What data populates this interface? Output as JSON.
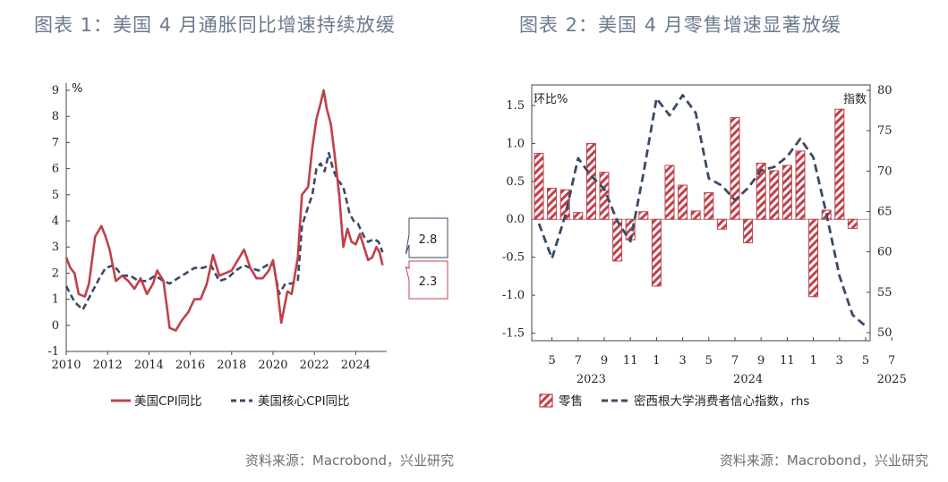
{
  "titles": {
    "chart1": "图表 1：美国 4 月通胀同比增速持续放缓",
    "chart2": "图表 2：美国 4 月零售增速显著放缓"
  },
  "sources": {
    "chart1": "资料来源：Macrobond，兴业研究",
    "chart2": "资料来源：Macrobond，兴业研究"
  },
  "colors": {
    "red": "#c0404a",
    "navy": "#3a4a66",
    "axis": "#444444"
  },
  "chart_data": [
    {
      "type": "line",
      "title": "",
      "ylabel": "%",
      "ylim": [
        -1,
        9
      ],
      "yticks": [
        "9",
        "8",
        "7",
        "6",
        "5",
        "4",
        "3",
        "2",
        "1",
        "0",
        "-1"
      ],
      "xlim": [
        2010,
        2025.5
      ],
      "xticks": [
        "2010",
        "2012",
        "2014",
        "2016",
        "2018",
        "2020",
        "2022",
        "2024"
      ],
      "legend": "bottom",
      "series": [
        {
          "name": "美国CPI同比",
          "color": "#c0404a",
          "points": [
            [
              2010.0,
              2.6
            ],
            [
              2010.2,
              2.2
            ],
            [
              2010.4,
              2.0
            ],
            [
              2010.6,
              1.2
            ],
            [
              2010.9,
              1.1
            ],
            [
              2011.1,
              1.6
            ],
            [
              2011.4,
              3.4
            ],
            [
              2011.7,
              3.8
            ],
            [
              2011.9,
              3.4
            ],
            [
              2012.1,
              2.9
            ],
            [
              2012.4,
              1.7
            ],
            [
              2012.7,
              1.9
            ],
            [
              2013.0,
              1.7
            ],
            [
              2013.3,
              1.4
            ],
            [
              2013.6,
              1.8
            ],
            [
              2013.9,
              1.2
            ],
            [
              2014.2,
              1.6
            ],
            [
              2014.4,
              2.1
            ],
            [
              2014.7,
              1.7
            ],
            [
              2015.0,
              -0.1
            ],
            [
              2015.3,
              -0.2
            ],
            [
              2015.6,
              0.2
            ],
            [
              2015.9,
              0.5
            ],
            [
              2016.2,
              1.0
            ],
            [
              2016.5,
              1.0
            ],
            [
              2016.8,
              1.6
            ],
            [
              2017.1,
              2.7
            ],
            [
              2017.4,
              1.9
            ],
            [
              2017.7,
              2.0
            ],
            [
              2018.0,
              2.1
            ],
            [
              2018.3,
              2.5
            ],
            [
              2018.6,
              2.9
            ],
            [
              2018.9,
              2.2
            ],
            [
              2019.2,
              1.8
            ],
            [
              2019.5,
              1.8
            ],
            [
              2019.8,
              2.1
            ],
            [
              2020.0,
              2.5
            ],
            [
              2020.2,
              1.5
            ],
            [
              2020.4,
              0.1
            ],
            [
              2020.7,
              1.3
            ],
            [
              2020.9,
              1.2
            ],
            [
              2021.2,
              2.6
            ],
            [
              2021.4,
              5.0
            ],
            [
              2021.7,
              5.3
            ],
            [
              2021.9,
              6.8
            ],
            [
              2022.1,
              7.9
            ],
            [
              2022.3,
              8.5
            ],
            [
              2022.45,
              9.0
            ],
            [
              2022.6,
              8.3
            ],
            [
              2022.8,
              7.7
            ],
            [
              2023.0,
              6.4
            ],
            [
              2023.2,
              5.0
            ],
            [
              2023.4,
              3.0
            ],
            [
              2023.6,
              3.7
            ],
            [
              2023.8,
              3.2
            ],
            [
              2024.0,
              3.1
            ],
            [
              2024.2,
              3.5
            ],
            [
              2024.4,
              3.0
            ],
            [
              2024.6,
              2.5
            ],
            [
              2024.8,
              2.6
            ],
            [
              2025.0,
              3.0
            ],
            [
              2025.15,
              2.8
            ],
            [
              2025.3,
              2.3
            ]
          ]
        },
        {
          "name": "美国核心CPI同比",
          "color": "#3a4a66",
          "points": [
            [
              2010.0,
              1.5
            ],
            [
              2010.4,
              0.9
            ],
            [
              2010.8,
              0.6
            ],
            [
              2011.2,
              1.2
            ],
            [
              2011.6,
              1.8
            ],
            [
              2011.9,
              2.2
            ],
            [
              2012.3,
              2.3
            ],
            [
              2012.7,
              1.9
            ],
            [
              2013.1,
              1.9
            ],
            [
              2013.5,
              1.7
            ],
            [
              2013.9,
              1.7
            ],
            [
              2014.3,
              1.9
            ],
            [
              2014.7,
              1.7
            ],
            [
              2015.0,
              1.6
            ],
            [
              2015.4,
              1.8
            ],
            [
              2015.8,
              2.0
            ],
            [
              2016.2,
              2.2
            ],
            [
              2016.6,
              2.2
            ],
            [
              2017.0,
              2.3
            ],
            [
              2017.4,
              1.7
            ],
            [
              2017.8,
              1.8
            ],
            [
              2018.2,
              2.1
            ],
            [
              2018.6,
              2.3
            ],
            [
              2018.9,
              2.2
            ],
            [
              2019.3,
              2.1
            ],
            [
              2019.7,
              2.3
            ],
            [
              2020.0,
              2.4
            ],
            [
              2020.3,
              1.2
            ],
            [
              2020.6,
              1.6
            ],
            [
              2020.9,
              1.6
            ],
            [
              2021.2,
              1.7
            ],
            [
              2021.4,
              3.8
            ],
            [
              2021.6,
              4.3
            ],
            [
              2021.9,
              5.0
            ],
            [
              2022.1,
              6.0
            ],
            [
              2022.3,
              6.2
            ],
            [
              2022.5,
              5.9
            ],
            [
              2022.7,
              6.6
            ],
            [
              2022.9,
              6.0
            ],
            [
              2023.1,
              5.6
            ],
            [
              2023.4,
              5.3
            ],
            [
              2023.7,
              4.3
            ],
            [
              2023.9,
              4.0
            ],
            [
              2024.1,
              3.9
            ],
            [
              2024.4,
              3.4
            ],
            [
              2024.6,
              3.2
            ],
            [
              2024.9,
              3.3
            ],
            [
              2025.1,
              3.2
            ],
            [
              2025.3,
              2.8
            ]
          ]
        }
      ],
      "annotations": [
        {
          "text": "2.8",
          "series": "美国核心CPI同比",
          "x": 2025.3,
          "y": 2.8
        },
        {
          "text": "2.3",
          "series": "美国CPI同比",
          "x": 2025.3,
          "y": 2.3
        }
      ]
    },
    {
      "type": "bar",
      "title": "",
      "ylabel": "环比%",
      "y2label": "指数",
      "ylim": [
        -1.6,
        1.7
      ],
      "yticks": [
        "1.5",
        "1.0",
        "0.5",
        "0.0",
        "-0.5",
        "-1.0",
        "-1.5"
      ],
      "y2lim": [
        49,
        80
      ],
      "y2ticks": [
        "80",
        "75",
        "70",
        "65",
        "60",
        "55",
        "50"
      ],
      "xticks": [
        "5",
        "7",
        "9",
        "11",
        "1",
        "3",
        "5",
        "7",
        "9",
        "11",
        "1",
        "3",
        "5",
        "7"
      ],
      "year_labels": [
        "2023",
        "2024",
        "2025"
      ],
      "legend": "bottom",
      "series": [
        {
          "name": "零售",
          "color": "#c0404a",
          "categories": [
            "2023-04",
            "2023-05",
            "2023-06",
            "2023-07",
            "2023-08",
            "2023-09",
            "2023-10",
            "2023-11",
            "2023-12",
            "2024-01",
            "2024-02",
            "2024-03",
            "2024-04",
            "2024-05",
            "2024-06",
            "2024-07",
            "2024-08",
            "2024-09",
            "2024-10",
            "2024-11",
            "2024-12",
            "2025-01",
            "2025-02",
            "2025-03",
            "2025-04"
          ],
          "values": [
            0.87,
            0.41,
            0.39,
            0.09,
            1.0,
            0.62,
            -0.55,
            -0.27,
            0.1,
            -0.88,
            0.71,
            0.45,
            0.11,
            0.35,
            -0.13,
            1.34,
            -0.31,
            0.74,
            0.64,
            0.71,
            0.9,
            -1.02,
            0.12,
            1.45,
            -0.12
          ]
        },
        {
          "name": "密西根大学消费者信心指数, rhs",
          "color": "#3a4a66",
          "categories": [
            "2023-04",
            "2023-05",
            "2023-06",
            "2023-07",
            "2023-08",
            "2023-09",
            "2023-10",
            "2023-11",
            "2023-12",
            "2024-01",
            "2024-02",
            "2024-03",
            "2024-04",
            "2024-05",
            "2024-06",
            "2024-07",
            "2024-08",
            "2024-09",
            "2024-10",
            "2024-11",
            "2024-12",
            "2025-01",
            "2025-02",
            "2025-03",
            "2025-04",
            "2025-05"
          ],
          "values": [
            63.5,
            59.2,
            64.4,
            71.6,
            69.4,
            67.8,
            63.8,
            61.3,
            69.7,
            79.0,
            76.9,
            79.4,
            77.2,
            69.1,
            68.2,
            66.4,
            67.9,
            70.1,
            70.5,
            71.8,
            74.0,
            71.7,
            64.7,
            57.0,
            52.2,
            50.8
          ]
        }
      ]
    }
  ],
  "legends": {
    "chart1": [
      "美国CPI同比",
      "美国核心CPI同比"
    ],
    "chart2": [
      "零售",
      "密西根大学消费者信心指数，rhs"
    ]
  }
}
